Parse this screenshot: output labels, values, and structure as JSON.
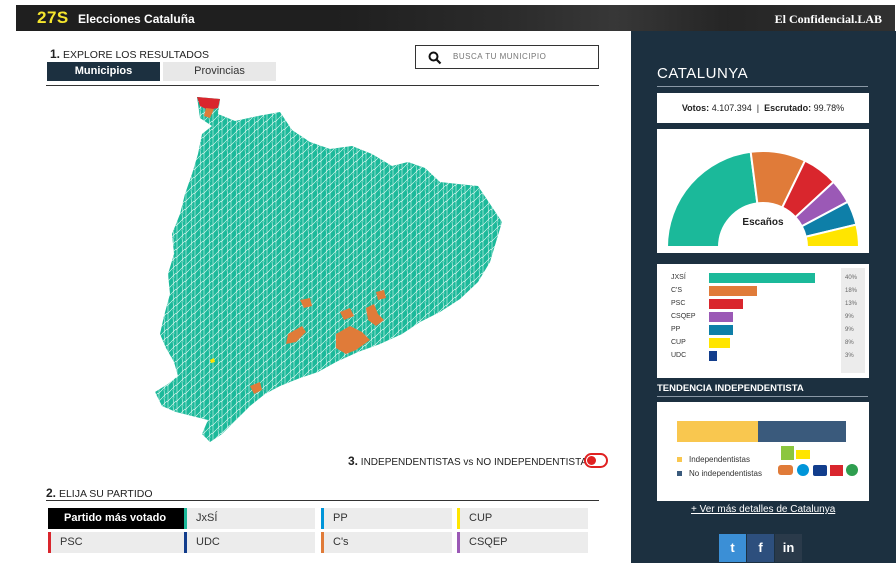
{
  "header": {
    "brand_number": "27S",
    "brand_title": "Elecciones Cataluña",
    "publisher": "El Confidencial.LAB"
  },
  "explore": {
    "step_number": "1.",
    "step_label": "EXPLORE LOS RESULTADOS",
    "tabs": [
      {
        "label": "Municipios",
        "active": true
      },
      {
        "label": "Provincias",
        "active": false
      }
    ],
    "search_placeholder": "BUSCA TU MUNICIPIO"
  },
  "independence": {
    "step_number": "3.",
    "label": "INDEPENDENTISTAS vs NO INDEPENDENTISTAS",
    "toggle_on": true
  },
  "party_select": {
    "step_number": "2.",
    "step_label": "ELIJA SU PARTIDO",
    "buttons": [
      {
        "label": "Partido más votado",
        "color": "#000000",
        "selected": true
      },
      {
        "label": "JxSÍ",
        "color": "#1bb99a"
      },
      {
        "label": "PP",
        "color": "#0095d9"
      },
      {
        "label": "CUP",
        "color": "#ffe500"
      },
      {
        "label": "PSC",
        "color": "#d9262d"
      },
      {
        "label": "UDC",
        "color": "#123d8c"
      },
      {
        "label": "C's",
        "color": "#e07b39"
      },
      {
        "label": "CSQEP",
        "color": "#9b59b6"
      }
    ]
  },
  "sidebar": {
    "region_title": "CATALUNYA",
    "votes_label": "Votos:",
    "votes_value": "4.107.394",
    "separator": "|",
    "scrutiny_label": "Escrutado:",
    "scrutiny_value": "99.78%",
    "seats_label": "Escaños",
    "results": [
      {
        "party": "JXSÍ",
        "pct_label": "40%",
        "pct": 40,
        "color": "#1bb99a"
      },
      {
        "party": "C'S",
        "pct_label": "18%",
        "pct": 18,
        "color": "#e07b39"
      },
      {
        "party": "PSC",
        "pct_label": "13%",
        "pct": 13,
        "color": "#d9262d"
      },
      {
        "party": "CSQEP",
        "pct_label": "9%",
        "pct": 9,
        "color": "#9b59b6"
      },
      {
        "party": "PP",
        "pct_label": "9%",
        "pct": 9,
        "color": "#0e7fa8"
      },
      {
        "party": "CUP",
        "pct_label": "8%",
        "pct": 8,
        "color": "#ffe500"
      },
      {
        "party": "UDC",
        "pct_label": "3%",
        "pct": 3,
        "color": "#123d8c"
      }
    ],
    "seats": [
      {
        "party": "JxSÍ",
        "share": 0.459,
        "color": "#1bb99a"
      },
      {
        "party": "C's",
        "share": 0.185,
        "color": "#e07b39"
      },
      {
        "party": "PSC",
        "share": 0.119,
        "color": "#d9262d"
      },
      {
        "party": "CSQEP",
        "share": 0.081,
        "color": "#9b59b6"
      },
      {
        "party": "PP",
        "share": 0.081,
        "color": "#0e7fa8"
      },
      {
        "party": "CUP",
        "share": 0.075,
        "color": "#ffe500"
      }
    ],
    "trend_title": "TENDENCIA INDEPENDENTISTA",
    "trend": {
      "independentistas": 0.48,
      "no_independentistas": 0.52
    },
    "legend_indep": "Independentistas",
    "legend_no_indep": "No independentistas",
    "colors": {
      "indep": "#f9c74f",
      "no_indep": "#3a5a7c"
    },
    "details_link": "+ Ver más detalles de Catalunya",
    "social": [
      {
        "icon": "twitter-icon",
        "glyph": "t",
        "color": "#3b8fd6"
      },
      {
        "icon": "facebook-icon",
        "glyph": "f",
        "color": "#2d4f7d"
      },
      {
        "icon": "linkedin-icon",
        "glyph": "in",
        "color": "#2a3a4a"
      }
    ]
  }
}
